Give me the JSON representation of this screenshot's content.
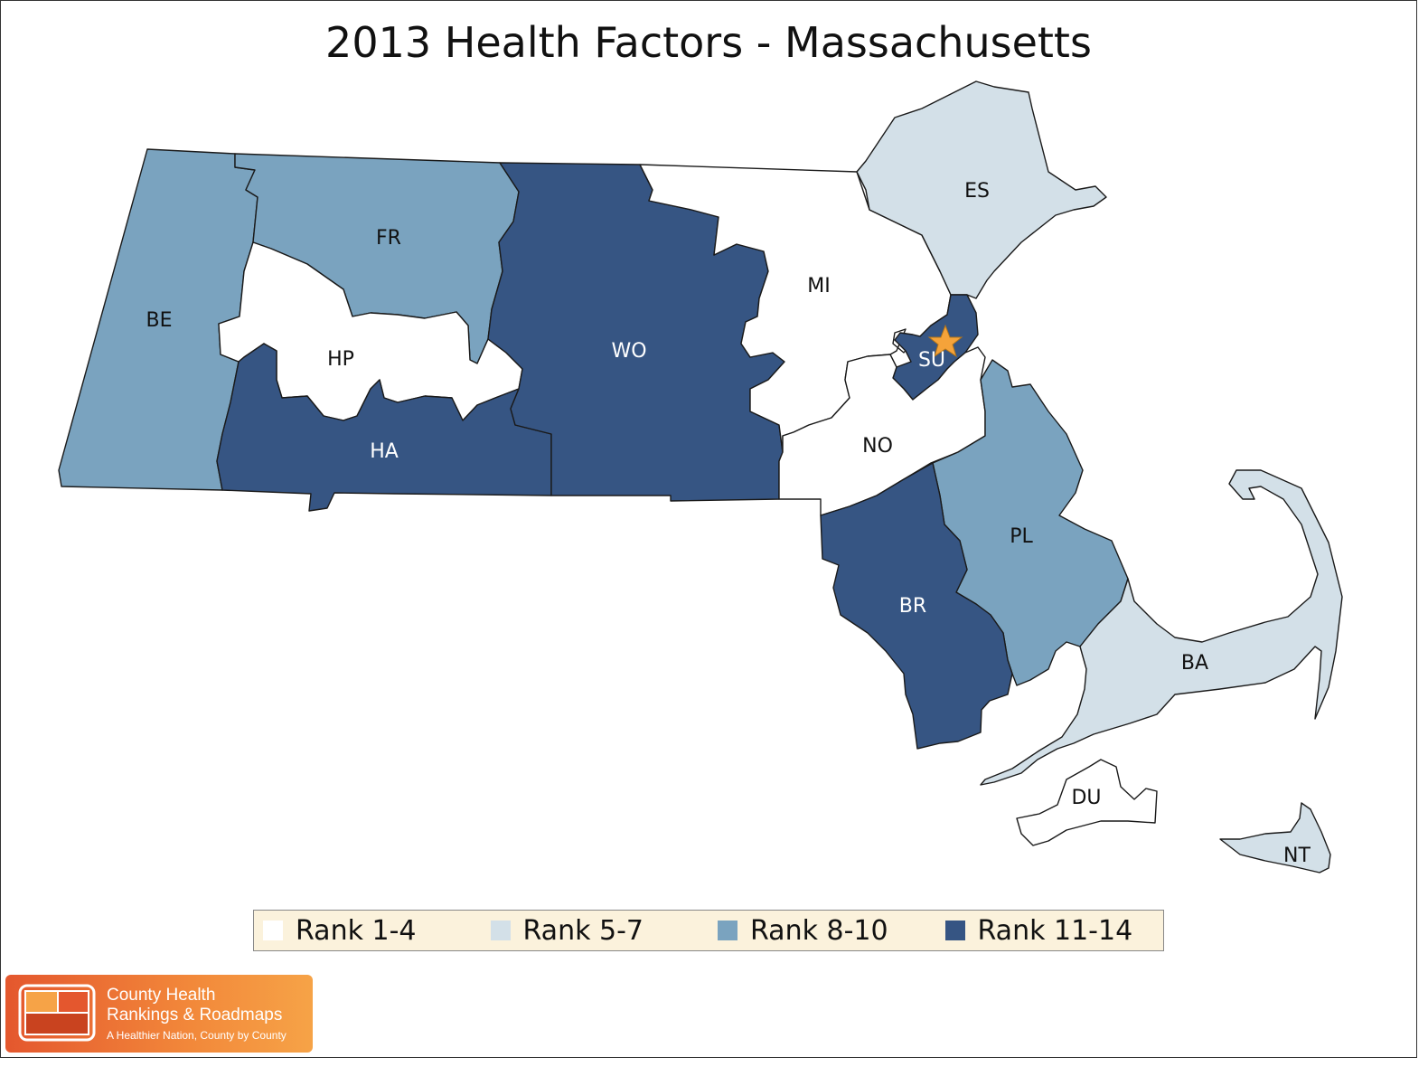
{
  "title": "2013 Health Factors - Massachusetts",
  "colors": {
    "rank_1_4": "#ffffff",
    "rank_5_7": "#d3e0e8",
    "rank_8_10": "#7aa3bf",
    "rank_11_14": "#365583",
    "star": "#f5a33a"
  },
  "legend": [
    {
      "label": "Rank 1-4",
      "color": "#ffffff"
    },
    {
      "label": "Rank 5-7",
      "color": "#d3e0e8"
    },
    {
      "label": "Rank 8-10",
      "color": "#7aa3bf"
    },
    {
      "label": "Rank 11-14",
      "color": "#365583"
    }
  ],
  "counties": [
    {
      "code": "BE",
      "rank_group": "Rank 8-10"
    },
    {
      "code": "FR",
      "rank_group": "Rank 8-10"
    },
    {
      "code": "HP",
      "rank_group": "Rank 1-4"
    },
    {
      "code": "HA",
      "rank_group": "Rank 11-14"
    },
    {
      "code": "WO",
      "rank_group": "Rank 11-14"
    },
    {
      "code": "MI",
      "rank_group": "Rank 1-4"
    },
    {
      "code": "ES",
      "rank_group": "Rank 5-7"
    },
    {
      "code": "SU",
      "rank_group": "Rank 11-14"
    },
    {
      "code": "NO",
      "rank_group": "Rank 1-4"
    },
    {
      "code": "PL",
      "rank_group": "Rank 8-10"
    },
    {
      "code": "BR",
      "rank_group": "Rank 11-14"
    },
    {
      "code": "BA",
      "rank_group": "Rank 5-7"
    },
    {
      "code": "DU",
      "rank_group": "Rank 1-4"
    },
    {
      "code": "NT",
      "rank_group": "Rank 5-7"
    }
  ],
  "logo": {
    "name_line1": "County Health",
    "name_line2": "Rankings & Roadmaps",
    "tagline": "A Healthier Nation, County by County"
  }
}
